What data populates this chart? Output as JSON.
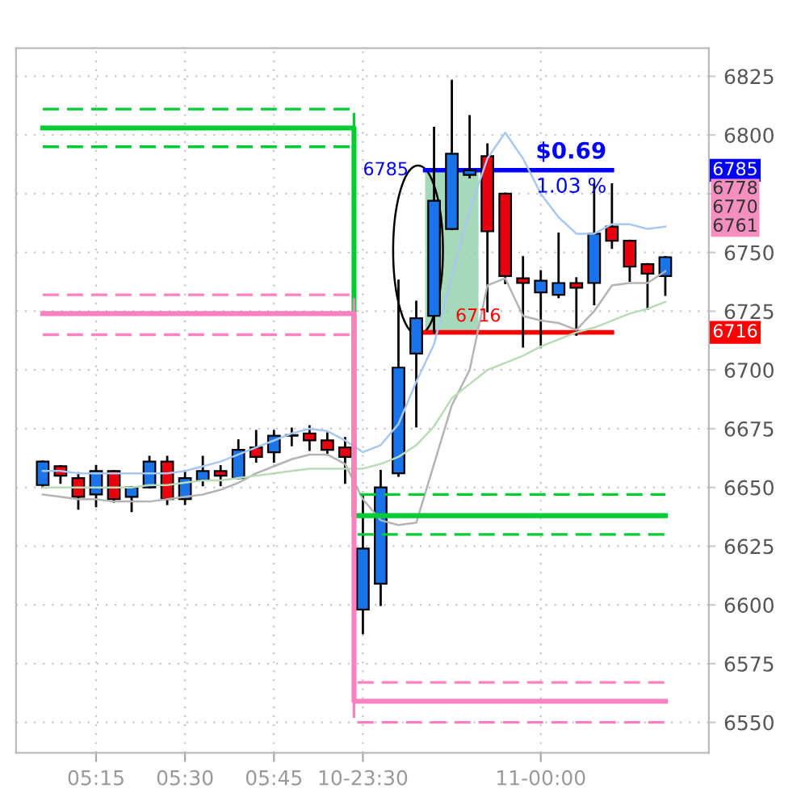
{
  "chart_data": {
    "type": "candlestick",
    "categories": [
      null,
      null,
      null,
      "05:15",
      null,
      null,
      null,
      null,
      "05:30",
      null,
      null,
      null,
      null,
      "05:45",
      null,
      null,
      null,
      null,
      "10-23:30",
      null,
      null,
      null,
      null,
      null,
      null,
      null,
      null,
      null,
      "11-00:00",
      null,
      null,
      null,
      null,
      null,
      null,
      null
    ],
    "ohlc": [
      [
        6651,
        6661,
        6650,
        6661
      ],
      [
        6659,
        6659,
        6652,
        6655
      ],
      [
        6654,
        6656,
        6641,
        6646
      ],
      [
        6647,
        6659,
        6642,
        6657
      ],
      [
        6657,
        6657,
        6644,
        6645
      ],
      [
        6646,
        6650,
        6640,
        6650
      ],
      [
        6650,
        6663,
        6650,
        6661
      ],
      [
        6661,
        6663,
        6643,
        6645
      ],
      [
        6645,
        6657,
        6643,
        6654
      ],
      [
        6653,
        6663,
        6651,
        6657
      ],
      [
        6657,
        6659,
        6651,
        6655
      ],
      [
        6654,
        6670,
        6654,
        6666
      ],
      [
        6667,
        6674,
        6661,
        6663
      ],
      [
        6665,
        6674,
        6661,
        6672
      ],
      [
        6672,
        6675,
        6668,
        6672
      ],
      [
        6673,
        6676,
        6666,
        6670
      ],
      [
        6670,
        6673,
        6664,
        6666
      ],
      [
        6667,
        6671,
        6652,
        6663
      ],
      [
        6598,
        6647,
        6588,
        6624
      ],
      [
        6609,
        6657,
        6600,
        6650
      ],
      [
        6656,
        6738,
        6655,
        6701
      ],
      [
        6707,
        6729,
        6676,
        6722
      ],
      [
        6723,
        6803,
        6716,
        6772
      ],
      [
        6760,
        6823,
        6760,
        6792
      ],
      [
        6783,
        6808,
        6782,
        6785
      ],
      [
        6791,
        6796,
        6725,
        6759
      ],
      [
        6775,
        6775,
        6737,
        6740
      ],
      [
        6739,
        6748,
        6710,
        6737
      ],
      [
        6733,
        6742,
        6710,
        6738
      ],
      [
        6732,
        6758,
        6731,
        6737
      ],
      [
        6737,
        6739,
        6715,
        6735
      ],
      [
        6737,
        6779,
        6728,
        6758
      ],
      [
        6761,
        6779,
        6752,
        6755
      ],
      [
        6755,
        6755,
        6738,
        6744
      ],
      [
        6745,
        6745,
        6726,
        6741
      ],
      [
        6740,
        6748,
        6732,
        6748
      ]
    ],
    "colors": [
      "#1874e8",
      "#e8000f",
      "#e8000f",
      "#1874e8",
      "#e8000f",
      "#1874e8",
      "#1874e8",
      "#e8000f",
      "#1874e8",
      "#1874e8",
      "#e8000f",
      "#1874e8",
      "#e8000f",
      "#1874e8",
      "#1874e8",
      "#e8000f",
      "#e8000f",
      "#e8000f",
      "#1874e8",
      "#1874e8",
      "#1874e8",
      "#1874e8",
      "#1874e8",
      "#1874e8",
      "#1874e8",
      "#e8000f",
      "#e8000f",
      "#e8000f",
      "#1874e8",
      "#1874e8",
      "#e8000f",
      "#1874e8",
      "#e8000f",
      "#e8000f",
      "#e8000f",
      "#1874e8"
    ],
    "series": [
      {
        "type": "line",
        "color": "#a8c8f0",
        "values": [
          6657,
          6657,
          6656,
          6656,
          6656,
          6656,
          6656,
          6656,
          6657,
          6659,
          6661,
          6664,
          6667,
          6670,
          6673,
          6675,
          6674,
          6670,
          6665,
          6668,
          6677,
          6695,
          6711,
          6740,
          6768,
          6790,
          6801,
          6790,
          6775,
          6765,
          6758,
          6758,
          6762,
          6762,
          6760,
          6761
        ]
      },
      {
        "type": "line",
        "color": "#b4b4b4",
        "values": [
          6647,
          6646,
          6645,
          6645,
          6644,
          6644,
          6644,
          6645,
          6646,
          6647,
          6649,
          6652,
          6656,
          6659,
          6662,
          6664,
          6664,
          6660,
          6645,
          6636,
          6634,
          6635,
          6660,
          6685,
          6700,
          6736,
          6739,
          6723,
          6721,
          6720,
          6717,
          6725,
          6736,
          6737,
          6737,
          6742
        ]
      },
      {
        "type": "line",
        "color": "#b8dcb8",
        "values": [
          6650,
          6650,
          6650,
          6650,
          6650,
          6650,
          6651,
          6651,
          6652,
          6653,
          6653,
          6654,
          6655,
          6656,
          6657,
          6658,
          6658,
          6658,
          6658,
          6660,
          6663,
          6668,
          6676,
          6688,
          6694,
          6700,
          6703,
          6706,
          6710,
          6713,
          6716,
          6718,
          6721,
          6724,
          6726,
          6729
        ]
      },
      {
        "type": "step",
        "color": "#00cc33",
        "line_style": "solid",
        "values": [
          6803,
          6803,
          6803,
          6803,
          6803,
          6803,
          6803,
          6803,
          6803,
          6803,
          6803,
          6803,
          6803,
          6803,
          6803,
          6803,
          6803,
          6803,
          6638,
          6638,
          6638,
          6638,
          6638,
          6638,
          6638,
          6638,
          6638,
          6638,
          6638,
          6638,
          6638,
          6638,
          6638,
          6638,
          6638,
          6638
        ]
      },
      {
        "type": "step",
        "color": "#00cc33",
        "line_style": "dashed",
        "values": [
          6811,
          6811,
          6811,
          6811,
          6811,
          6811,
          6811,
          6811,
          6811,
          6811,
          6811,
          6811,
          6811,
          6811,
          6811,
          6811,
          6811,
          6811,
          6647,
          6647,
          6647,
          6647,
          6647,
          6647,
          6647,
          6647,
          6647,
          6647,
          6647,
          6647,
          6647,
          6647,
          6647,
          6647,
          6647,
          6647
        ]
      },
      {
        "type": "step",
        "color": "#00cc33",
        "line_style": "dashed",
        "values": [
          6795,
          6795,
          6795,
          6795,
          6795,
          6795,
          6795,
          6795,
          6795,
          6795,
          6795,
          6795,
          6795,
          6795,
          6795,
          6795,
          6795,
          6795,
          6630,
          6630,
          6630,
          6630,
          6630,
          6630,
          6630,
          6630,
          6630,
          6630,
          6630,
          6630,
          6630,
          6630,
          6630,
          6630,
          6630,
          6630
        ]
      },
      {
        "type": "step",
        "color": "#ff80c0",
        "line_style": "solid",
        "values": [
          6724,
          6724,
          6724,
          6724,
          6724,
          6724,
          6724,
          6724,
          6724,
          6724,
          6724,
          6724,
          6724,
          6724,
          6724,
          6724,
          6724,
          6724,
          6559,
          6559,
          6559,
          6559,
          6559,
          6559,
          6559,
          6559,
          6559,
          6559,
          6559,
          6559,
          6559,
          6559,
          6559,
          6559,
          6559,
          6559
        ]
      },
      {
        "type": "step",
        "color": "#ff80c0",
        "line_style": "dashed",
        "values": [
          6732,
          6732,
          6732,
          6732,
          6732,
          6732,
          6732,
          6732,
          6732,
          6732,
          6732,
          6732,
          6732,
          6732,
          6732,
          6732,
          6732,
          6732,
          6567,
          6567,
          6567,
          6567,
          6567,
          6567,
          6567,
          6567,
          6567,
          6567,
          6567,
          6567,
          6567,
          6567,
          6567,
          6567,
          6567,
          6567
        ]
      },
      {
        "type": "step",
        "color": "#ff80c0",
        "line_style": "dashed",
        "values": [
          6715,
          6715,
          6715,
          6715,
          6715,
          6715,
          6715,
          6715,
          6715,
          6715,
          6715,
          6715,
          6715,
          6715,
          6715,
          6715,
          6715,
          6715,
          6550,
          6550,
          6550,
          6550,
          6550,
          6550,
          6550,
          6550,
          6550,
          6550,
          6550,
          6550,
          6550,
          6550,
          6550,
          6550,
          6550,
          6550
        ]
      }
    ],
    "ref_lines": [
      {
        "axis": "y",
        "value": 6785,
        "label": "6785",
        "color": "#0000ff"
      },
      {
        "axis": "y",
        "value": 6716,
        "label": "6716",
        "color": "#ff0000"
      }
    ],
    "bands": [
      {
        "axis": "y",
        "from": 6716,
        "to": 6785,
        "color": "#8fd0a8"
      }
    ],
    "annotations": [
      "$0.69",
      "1.03 %",
      "6778",
      "6770",
      "6761"
    ],
    "ylim": [
      6537,
      6837
    ],
    "yticks": [
      6550,
      6575,
      6600,
      6625,
      6650,
      6675,
      6700,
      6725,
      6750,
      {
        "value": 6775,
        "label": null
      },
      6800,
      6825
    ],
    "grid": true
  }
}
